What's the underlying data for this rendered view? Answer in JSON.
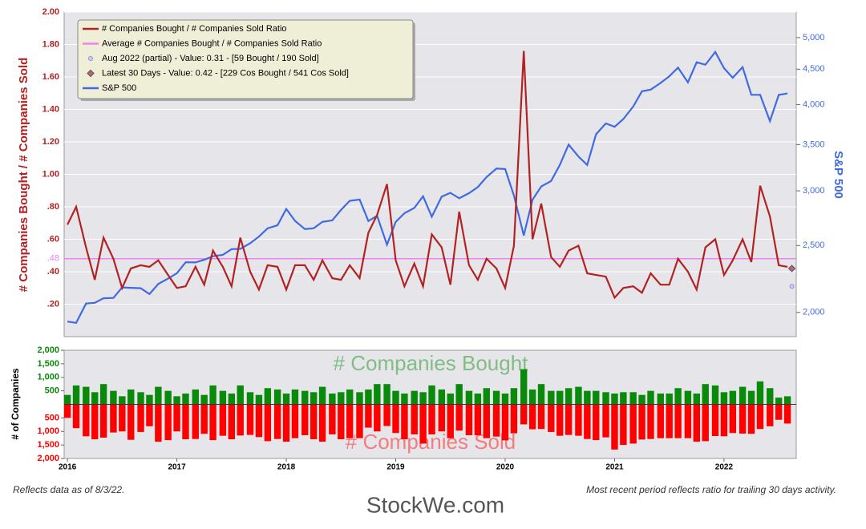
{
  "chart_data": [
    {
      "type": "line",
      "ylabel": "# Companies Bought / # Companies Sold",
      "y2label": "S&P 500",
      "x": [
        2016.0,
        2016.08,
        2016.17,
        2016.25,
        2016.33,
        2016.42,
        2016.5,
        2016.58,
        2016.67,
        2016.75,
        2016.83,
        2016.92,
        2017.0,
        2017.08,
        2017.17,
        2017.25,
        2017.33,
        2017.42,
        2017.5,
        2017.58,
        2017.67,
        2017.75,
        2017.83,
        2017.92,
        2018.0,
        2018.08,
        2018.17,
        2018.25,
        2018.33,
        2018.42,
        2018.5,
        2018.58,
        2018.67,
        2018.75,
        2018.83,
        2018.92,
        2019.0,
        2019.08,
        2019.17,
        2019.25,
        2019.33,
        2019.42,
        2019.5,
        2019.58,
        2019.67,
        2019.75,
        2019.83,
        2019.92,
        2020.0,
        2020.08,
        2020.17,
        2020.25,
        2020.33,
        2020.42,
        2020.5,
        2020.58,
        2020.67,
        2020.75,
        2020.83,
        2020.92,
        2021.0,
        2021.08,
        2021.17,
        2021.25,
        2021.33,
        2021.42,
        2021.5,
        2021.58,
        2021.67,
        2021.75,
        2021.83,
        2021.92,
        2022.0,
        2022.08,
        2022.17,
        2022.25,
        2022.33,
        2022.42,
        2022.5,
        2022.58
      ],
      "xlim": [
        2015.97,
        2022.66
      ],
      "ylim": [
        0,
        2.0
      ],
      "yticks": [
        {
          "value": 0.2,
          "label": ".20"
        },
        {
          "value": 0.4,
          "label": ".40"
        },
        {
          "value": 0.6,
          "label": ".60"
        },
        {
          "value": 0.8,
          "label": ".80"
        },
        {
          "value": 1.0,
          "label": "1.00"
        },
        {
          "value": 1.2,
          "label": "1.20"
        },
        {
          "value": 1.4,
          "label": "1.40"
        },
        {
          "value": 1.6,
          "label": "1.60"
        },
        {
          "value": 1.8,
          "label": "1.80"
        },
        {
          "value": 2.0,
          "label": "2.00"
        }
      ],
      "y2lim": [
        1845,
        5445
      ],
      "y2scale": "log",
      "y2ticks": [
        {
          "value": 2000,
          "label": "2,000"
        },
        {
          "value": 2500,
          "label": "2,500"
        },
        {
          "value": 3000,
          "label": "3,000"
        },
        {
          "value": 3500,
          "label": "3,500"
        },
        {
          "value": 4000,
          "label": "4,000"
        },
        {
          "value": 4500,
          "label": "4,500"
        },
        {
          "value": 5000,
          "label": "5,000"
        }
      ],
      "grid": true,
      "legend": "upper left",
      "series": [
        {
          "name": "# Companies Bought / # Companies Sold Ratio",
          "color": "#b22222",
          "style": "line",
          "values": [
            0.69,
            0.8,
            0.55,
            0.35,
            0.61,
            0.48,
            0.3,
            0.42,
            0.44,
            0.43,
            0.47,
            0.38,
            0.3,
            0.31,
            0.43,
            0.32,
            0.53,
            0.43,
            0.31,
            0.61,
            0.4,
            0.29,
            0.44,
            0.43,
            0.29,
            0.44,
            0.44,
            0.35,
            0.47,
            0.36,
            0.35,
            0.44,
            0.36,
            0.64,
            0.75,
            0.94,
            0.47,
            0.31,
            0.45,
            0.31,
            0.63,
            0.55,
            0.32,
            0.77,
            0.44,
            0.35,
            0.48,
            0.42,
            0.3,
            0.56,
            1.76,
            0.6,
            0.82,
            0.49,
            0.43,
            0.53,
            0.56,
            0.39,
            0.38,
            0.37,
            0.24,
            0.3,
            0.31,
            0.27,
            0.39,
            0.32,
            0.32,
            0.48,
            0.4,
            0.29,
            0.55,
            0.6,
            0.38,
            0.47,
            0.6,
            0.46,
            0.93,
            0.74,
            0.44,
            0.43
          ]
        },
        {
          "name": "Average # Companies Bought / # Companies Sold Ratio",
          "color": "#ee82ee",
          "style": "hline",
          "value": 0.48,
          "label": ".48"
        },
        {
          "name": "Aug 2022 (partial) - Value: 0.31 - [59 Bought / 190 Sold]",
          "color": "#8c8ce0",
          "style": "circle",
          "x": 2022.62,
          "value": 0.31
        },
        {
          "name": "Latest 30 Days - Value: 0.42 - [229 Cos Bought / 541 Cos Sold]",
          "color": "#c06080",
          "style": "diamond",
          "x": 2022.62,
          "value": 0.42
        },
        {
          "name": "S&P 500",
          "color": "#4169e1",
          "style": "line",
          "axis": "y2",
          "values": [
            1940,
            1932,
            2060,
            2065,
            2097,
            2099,
            2174,
            2171,
            2168,
            2126,
            2199,
            2239,
            2279,
            2364,
            2363,
            2384,
            2412,
            2423,
            2470,
            2472,
            2519,
            2575,
            2648,
            2674,
            2824,
            2714,
            2641,
            2648,
            2705,
            2718,
            2816,
            2902,
            2914,
            2712,
            2760,
            2507,
            2704,
            2784,
            2834,
            2946,
            2752,
            2942,
            2980,
            2926,
            2977,
            3038,
            3141,
            3231,
            3226,
            2954,
            2585,
            2912,
            3044,
            3100,
            3271,
            3500,
            3363,
            3270,
            3622,
            3756,
            3714,
            3811,
            3973,
            4181,
            4204,
            4298,
            4395,
            4523,
            4308,
            4605,
            4567,
            4766,
            4516,
            4374,
            4530,
            4132,
            4132,
            3785,
            4130,
            4150
          ]
        }
      ]
    },
    {
      "type": "bar",
      "ylabel": "# of Companies",
      "x": [
        2016.0,
        2016.08,
        2016.17,
        2016.25,
        2016.33,
        2016.42,
        2016.5,
        2016.58,
        2016.67,
        2016.75,
        2016.83,
        2016.92,
        2017.0,
        2017.08,
        2017.17,
        2017.25,
        2017.33,
        2017.42,
        2017.5,
        2017.58,
        2017.67,
        2017.75,
        2017.83,
        2017.92,
        2018.0,
        2018.08,
        2018.17,
        2018.25,
        2018.33,
        2018.42,
        2018.5,
        2018.58,
        2018.67,
        2018.75,
        2018.83,
        2018.92,
        2019.0,
        2019.08,
        2019.17,
        2019.25,
        2019.33,
        2019.42,
        2019.5,
        2019.58,
        2019.67,
        2019.75,
        2019.83,
        2019.92,
        2020.0,
        2020.08,
        2020.17,
        2020.25,
        2020.33,
        2020.42,
        2020.5,
        2020.58,
        2020.67,
        2020.75,
        2020.83,
        2020.92,
        2021.0,
        2021.08,
        2021.17,
        2021.25,
        2021.33,
        2021.42,
        2021.5,
        2021.58,
        2021.67,
        2021.75,
        2021.83,
        2021.92,
        2022.0,
        2022.08,
        2022.17,
        2022.25,
        2022.33,
        2022.42,
        2022.5,
        2022.58
      ],
      "xlim": [
        2015.97,
        2022.66
      ],
      "xticks": [
        2016,
        2017,
        2018,
        2019,
        2020,
        2021,
        2022
      ],
      "ylim": [
        -2000,
        2000
      ],
      "yticks": [
        {
          "value": -2000,
          "label": "2,000"
        },
        {
          "value": -1500,
          "label": "1,500"
        },
        {
          "value": -1000,
          "label": "1,000"
        },
        {
          "value": -500,
          "label": "500"
        },
        {
          "value": 500,
          "label": "500"
        },
        {
          "value": 1000,
          "label": "1,000"
        },
        {
          "value": 1500,
          "label": "1,500"
        },
        {
          "value": 2000,
          "label": "2,000"
        }
      ],
      "series": [
        {
          "name": "# Companies Bought",
          "color": "#0a8a0a",
          "values": [
            350,
            700,
            650,
            450,
            750,
            500,
            300,
            550,
            450,
            350,
            650,
            500,
            300,
            400,
            550,
            350,
            700,
            500,
            400,
            700,
            450,
            350,
            600,
            550,
            400,
            550,
            500,
            450,
            650,
            400,
            450,
            550,
            450,
            550,
            750,
            750,
            500,
            400,
            500,
            450,
            700,
            550,
            400,
            750,
            500,
            400,
            600,
            500,
            400,
            600,
            1300,
            550,
            750,
            500,
            500,
            600,
            650,
            500,
            500,
            450,
            400,
            450,
            450,
            350,
            500,
            400,
            400,
            600,
            500,
            400,
            750,
            700,
            450,
            500,
            650,
            500,
            850,
            600,
            250,
            300
          ]
        },
        {
          "name": "# Companies Sold",
          "color": "#ff0000",
          "values": [
            -500,
            -880,
            -1180,
            -1290,
            -1230,
            -1040,
            -1000,
            -1310,
            -1020,
            -810,
            -1380,
            -1320,
            -1000,
            -1290,
            -1280,
            -1090,
            -1320,
            -1160,
            -1290,
            -1150,
            -1130,
            -1210,
            -1360,
            -1280,
            -1380,
            -1250,
            -1140,
            -1290,
            -1380,
            -1110,
            -1290,
            -1250,
            -1250,
            -860,
            -1000,
            -800,
            -1060,
            -1290,
            -1110,
            -1450,
            -1110,
            -1000,
            -1250,
            -970,
            -1140,
            -1140,
            -1250,
            -1190,
            -1330,
            -1070,
            -740,
            -920,
            -910,
            -1020,
            -1160,
            -1130,
            -1160,
            -1280,
            -1320,
            -1220,
            -1670,
            -1500,
            -1450,
            -1300,
            -1280,
            -1250,
            -1250,
            -1250,
            -1250,
            -1380,
            -1360,
            -1170,
            -1180,
            -1060,
            -1080,
            -1090,
            -910,
            -810,
            -570,
            -710
          ]
        }
      ]
    }
  ],
  "footnotes": {
    "left": "Reflects data as of 8/3/22.",
    "right": "Most recent period reflects ratio for trailing 30 days activity."
  },
  "watermark": "StockWe.com"
}
